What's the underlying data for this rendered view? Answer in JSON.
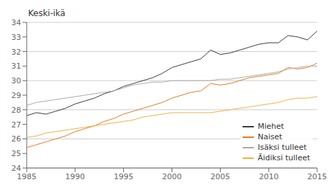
{
  "chart_data": {
    "type": "line",
    "ylabel": "Keski-ikä",
    "x": [
      1985,
      1986,
      1987,
      1988,
      1989,
      1990,
      1991,
      1992,
      1993,
      1994,
      1995,
      1996,
      1997,
      1998,
      1999,
      2000,
      2001,
      2002,
      2003,
      2004,
      2005,
      2006,
      2007,
      2008,
      2009,
      2010,
      2011,
      2012,
      2013,
      2014,
      2015
    ],
    "series": [
      {
        "name": "Miehet",
        "color": "#3a3a3a",
        "values": [
          27.6,
          27.8,
          27.7,
          27.9,
          28.1,
          28.4,
          28.6,
          28.8,
          29.1,
          29.3,
          29.6,
          29.8,
          30.0,
          30.2,
          30.5,
          30.9,
          31.1,
          31.3,
          31.5,
          32.1,
          31.8,
          31.9,
          32.1,
          32.3,
          32.5,
          32.6,
          32.6,
          33.1,
          33.0,
          32.8,
          33.4
        ]
      },
      {
        "name": "Naiset",
        "color": "#e07b20",
        "values": [
          25.4,
          25.6,
          25.8,
          26.0,
          26.2,
          26.5,
          26.7,
          26.9,
          27.2,
          27.4,
          27.7,
          27.9,
          28.1,
          28.3,
          28.5,
          28.8,
          29.0,
          29.2,
          29.3,
          29.8,
          29.7,
          29.8,
          30.0,
          30.2,
          30.3,
          30.4,
          30.5,
          30.9,
          30.8,
          30.9,
          31.2
        ]
      },
      {
        "name": "Isäksi tulleet",
        "color": "#aaaaaa",
        "values": [
          28.3,
          28.5,
          28.6,
          28.7,
          28.8,
          28.9,
          29.0,
          29.1,
          29.2,
          29.3,
          29.5,
          29.7,
          29.8,
          29.9,
          29.9,
          30.0,
          30.0,
          30.0,
          30.0,
          30.0,
          30.1,
          30.1,
          30.2,
          30.3,
          30.4,
          30.5,
          30.6,
          30.8,
          30.9,
          31.0,
          31.0
        ]
      },
      {
        "name": "Äidiksi tulleet",
        "color": "#f0b040",
        "values": [
          26.1,
          26.2,
          26.4,
          26.5,
          26.6,
          26.7,
          26.8,
          26.9,
          27.0,
          27.1,
          27.2,
          27.3,
          27.5,
          27.6,
          27.7,
          27.8,
          27.8,
          27.8,
          27.8,
          27.8,
          27.9,
          28.0,
          28.1,
          28.2,
          28.3,
          28.4,
          28.5,
          28.7,
          28.8,
          28.8,
          28.9
        ]
      }
    ],
    "xlim": [
      1985,
      2015
    ],
    "xticks": [
      1985,
      1990,
      1995,
      2000,
      2005,
      2010,
      2015
    ],
    "ylim": [
      24,
      34
    ],
    "yticks": [
      24,
      25,
      26,
      27,
      28,
      29,
      30,
      31,
      32,
      33,
      34
    ],
    "grid": true,
    "legend": "lower right"
  }
}
